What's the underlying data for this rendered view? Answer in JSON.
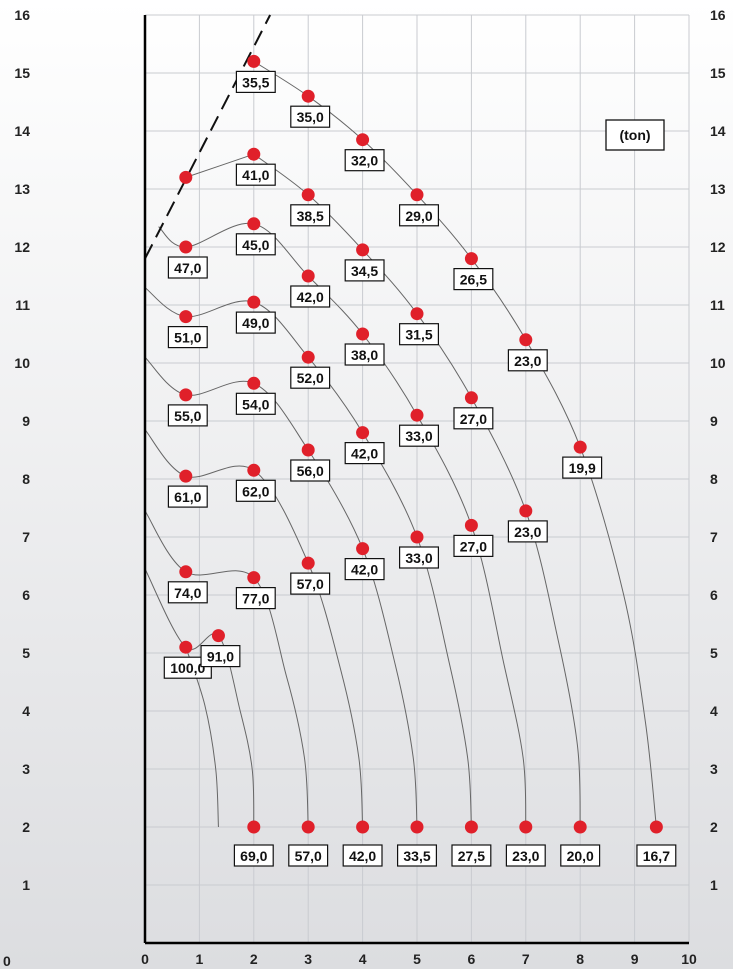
{
  "chart_data": {
    "type": "scatter",
    "title": "",
    "unit_label": "(ton)",
    "xlabel": "",
    "ylabel": "",
    "xlim": [
      0,
      10
    ],
    "ylim": [
      0,
      16
    ],
    "x_ticks": [
      "0",
      "1",
      "2",
      "3",
      "4",
      "5",
      "6",
      "7",
      "8",
      "9",
      "10"
    ],
    "y_ticks": [
      "0",
      "1",
      "2",
      "3",
      "4",
      "5",
      "6",
      "7",
      "8",
      "9",
      "10",
      "11",
      "12",
      "13",
      "14",
      "15",
      "16"
    ],
    "grid": true,
    "colors": {
      "point": "#e0202a",
      "curve": "#666666",
      "boundary": "#111111",
      "grid": "#c9cbd0",
      "bg_top": "#ffffff",
      "bg_bottom": "#dcdde0"
    },
    "points": [
      {
        "x": 2.0,
        "y": 15.2,
        "label": "35,5"
      },
      {
        "x": 3.0,
        "y": 14.6,
        "label": "35,0"
      },
      {
        "x": 4.0,
        "y": 13.85,
        "label": "32,0"
      },
      {
        "x": 5.0,
        "y": 12.9,
        "label": "29,0"
      },
      {
        "x": 6.0,
        "y": 11.8,
        "label": "26,5"
      },
      {
        "x": 7.0,
        "y": 10.4,
        "label": "23,0"
      },
      {
        "x": 8.0,
        "y": 8.55,
        "label": "19,9"
      },
      {
        "x": 0.75,
        "y": 13.2,
        "label": ""
      },
      {
        "x": 2.0,
        "y": 13.6,
        "label": "41,0"
      },
      {
        "x": 3.0,
        "y": 12.9,
        "label": "38,5"
      },
      {
        "x": 4.0,
        "y": 11.95,
        "label": "34,5"
      },
      {
        "x": 5.0,
        "y": 10.85,
        "label": "31,5"
      },
      {
        "x": 6.0,
        "y": 9.4,
        "label": "27,0"
      },
      {
        "x": 7.0,
        "y": 7.45,
        "label": "23,0"
      },
      {
        "x": 0.75,
        "y": 12.0,
        "label": "47,0"
      },
      {
        "x": 2.0,
        "y": 12.4,
        "label": "45,0"
      },
      {
        "x": 3.0,
        "y": 11.5,
        "label": "42,0"
      },
      {
        "x": 4.0,
        "y": 10.5,
        "label": "38,0"
      },
      {
        "x": 5.0,
        "y": 9.1,
        "label": "33,0"
      },
      {
        "x": 6.0,
        "y": 7.2,
        "label": "27,0"
      },
      {
        "x": 0.75,
        "y": 10.8,
        "label": "51,0"
      },
      {
        "x": 2.0,
        "y": 11.05,
        "label": "49,0"
      },
      {
        "x": 3.0,
        "y": 10.1,
        "label": "52,0"
      },
      {
        "x": 4.0,
        "y": 8.8,
        "label": "42,0"
      },
      {
        "x": 5.0,
        "y": 7.0,
        "label": "33,0"
      },
      {
        "x": 0.75,
        "y": 9.45,
        "label": "55,0"
      },
      {
        "x": 2.0,
        "y": 9.65,
        "label": "54,0"
      },
      {
        "x": 3.0,
        "y": 8.5,
        "label": "56,0"
      },
      {
        "x": 4.0,
        "y": 6.8,
        "label": "42,0"
      },
      {
        "x": 0.75,
        "y": 8.05,
        "label": "61,0"
      },
      {
        "x": 2.0,
        "y": 8.15,
        "label": "62,0"
      },
      {
        "x": 3.0,
        "y": 6.55,
        "label": "57,0"
      },
      {
        "x": 0.75,
        "y": 6.4,
        "label": "74,0"
      },
      {
        "x": 2.0,
        "y": 6.3,
        "label": "77,0"
      },
      {
        "x": 0.75,
        "y": 5.1,
        "label": "100,0"
      },
      {
        "x": 1.35,
        "y": 5.3,
        "label": "91,0"
      },
      {
        "x": 2.0,
        "y": 2.0,
        "label": "69,0"
      },
      {
        "x": 3.0,
        "y": 2.0,
        "label": "57,0"
      },
      {
        "x": 4.0,
        "y": 2.0,
        "label": "42,0"
      },
      {
        "x": 5.0,
        "y": 2.0,
        "label": "33,5"
      },
      {
        "x": 6.0,
        "y": 2.0,
        "label": "27,5"
      },
      {
        "x": 7.0,
        "y": 2.0,
        "label": "23,0"
      },
      {
        "x": 8.0,
        "y": 2.0,
        "label": "20,0"
      },
      {
        "x": 9.4,
        "y": 2.0,
        "label": "16,7"
      }
    ]
  }
}
